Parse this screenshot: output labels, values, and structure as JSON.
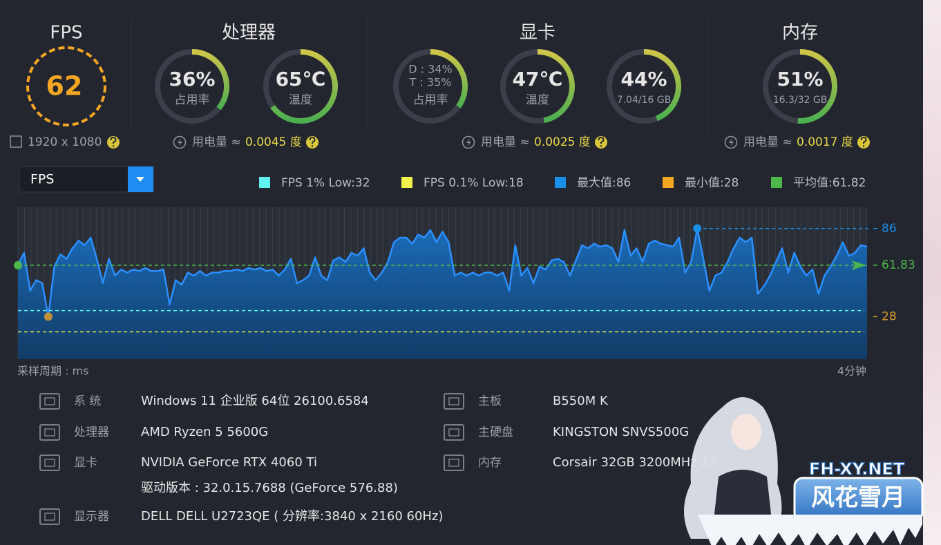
{
  "fps_panel": {
    "title": "FPS",
    "value": 62,
    "resolution": "1920 x 1080"
  },
  "panels": [
    {
      "title": "处理器",
      "gauges": [
        {
          "value": 36,
          "label": "36%",
          "caption": "占用率"
        },
        {
          "value": 65,
          "label": "65℃",
          "caption": "温度"
        }
      ],
      "power_label": "用电量 ≈",
      "power_value": "0.0045 度"
    },
    {
      "title": "显卡",
      "gauges": [
        {
          "value": 35,
          "lines": [
            "D : 34%",
            "T : 35%"
          ],
          "caption": "占用率"
        },
        {
          "value": 47,
          "label": "47℃",
          "caption": "温度"
        },
        {
          "value": 44,
          "label": "44%",
          "caption": "7.04/16 GB"
        }
      ],
      "power_label": "用电量 ≈",
      "power_value": "0.0025 度"
    },
    {
      "title": "内存",
      "gauges": [
        {
          "value": 51,
          "label": "51%",
          "caption": "16.3/32 GB"
        }
      ],
      "power_label": "用电量 ≈",
      "power_value": "0.0017 度"
    }
  ],
  "chart_data": {
    "type": "line",
    "selector": "FPS",
    "color": "#2a90ff",
    "ylim": [
      0,
      100
    ],
    "legend": [
      {
        "label": "FPS 1% Low:32",
        "value": 32,
        "color": "#5ef3f0"
      },
      {
        "label": "FPS 0.1% Low:18",
        "value": 18,
        "color": "#f2f04a"
      },
      {
        "label": "最大值:86",
        "value": 86,
        "color": "#1a8fe8"
      },
      {
        "label": "最小值:28",
        "value": 28,
        "color": "#f5a623"
      },
      {
        "label": "平均值:61.82",
        "value": 61.82,
        "color": "#4cb84c"
      }
    ],
    "right_labels": [
      {
        "value": 86,
        "label": "86",
        "color": "#1a8fe8"
      },
      {
        "value": 61.83,
        "label": "61.83",
        "color": "#4cb84c"
      },
      {
        "value": 28,
        "label": "28",
        "color": "#d69a2d"
      }
    ],
    "values": [
      62,
      70,
      45,
      52,
      50,
      28,
      61,
      69,
      66,
      73,
      78,
      75,
      80,
      66,
      50,
      66,
      55,
      59,
      57,
      59,
      58,
      60,
      58,
      58,
      59,
      36,
      52,
      49,
      57,
      55,
      58,
      55,
      57,
      57,
      58,
      58,
      59,
      58,
      60,
      59,
      60,
      58,
      59,
      55,
      59,
      66,
      50,
      52,
      55,
      67,
      55,
      52,
      65,
      67,
      64,
      70,
      68,
      73,
      57,
      52,
      57,
      64,
      77,
      80,
      80,
      76,
      82,
      80,
      85,
      77,
      84,
      77,
      55,
      57,
      55,
      57,
      55,
      57,
      57,
      55,
      57,
      45,
      75,
      55,
      60,
      50,
      61,
      59,
      65,
      66,
      64,
      55,
      65,
      75,
      73,
      76,
      74,
      75,
      73,
      64,
      85,
      68,
      73,
      64,
      76,
      78,
      76,
      75,
      74,
      80,
      57,
      64,
      86,
      66,
      45,
      55,
      57,
      64,
      73,
      80,
      77,
      80,
      43,
      48,
      55,
      64,
      73,
      57,
      70,
      61,
      55,
      59,
      43,
      55,
      61,
      68,
      77,
      68,
      70,
      75,
      74
    ],
    "x_caption": "采样周期 : ms",
    "x_end_label": "4分钟"
  },
  "specs": {
    "left": [
      {
        "label": "系 统",
        "value": "Windows 11 企业版 64位 26100.6584"
      },
      {
        "label": "处理器",
        "value": "AMD Ryzen 5 5600G"
      },
      {
        "label": "显卡",
        "value": "NVIDIA GeForce RTX 4060 Ti",
        "extra": "驱动版本 : 32.0.15.7688 (GeForce 576.88)"
      },
      {
        "label": "显示器",
        "value": "DELL DELL U2723QE ( 分辨率:3840 x 2160 60Hz)"
      }
    ],
    "right": [
      {
        "label": "主板",
        "value": "B550M K"
      },
      {
        "label": "主硬盘",
        "value": "KINGSTON SNVS500G"
      },
      {
        "label": "内存",
        "value": "Corsair 32GB 3200MHz 22"
      }
    ]
  },
  "watermark": {
    "site": "FH-XY.NET",
    "name": "风花雪月"
  }
}
